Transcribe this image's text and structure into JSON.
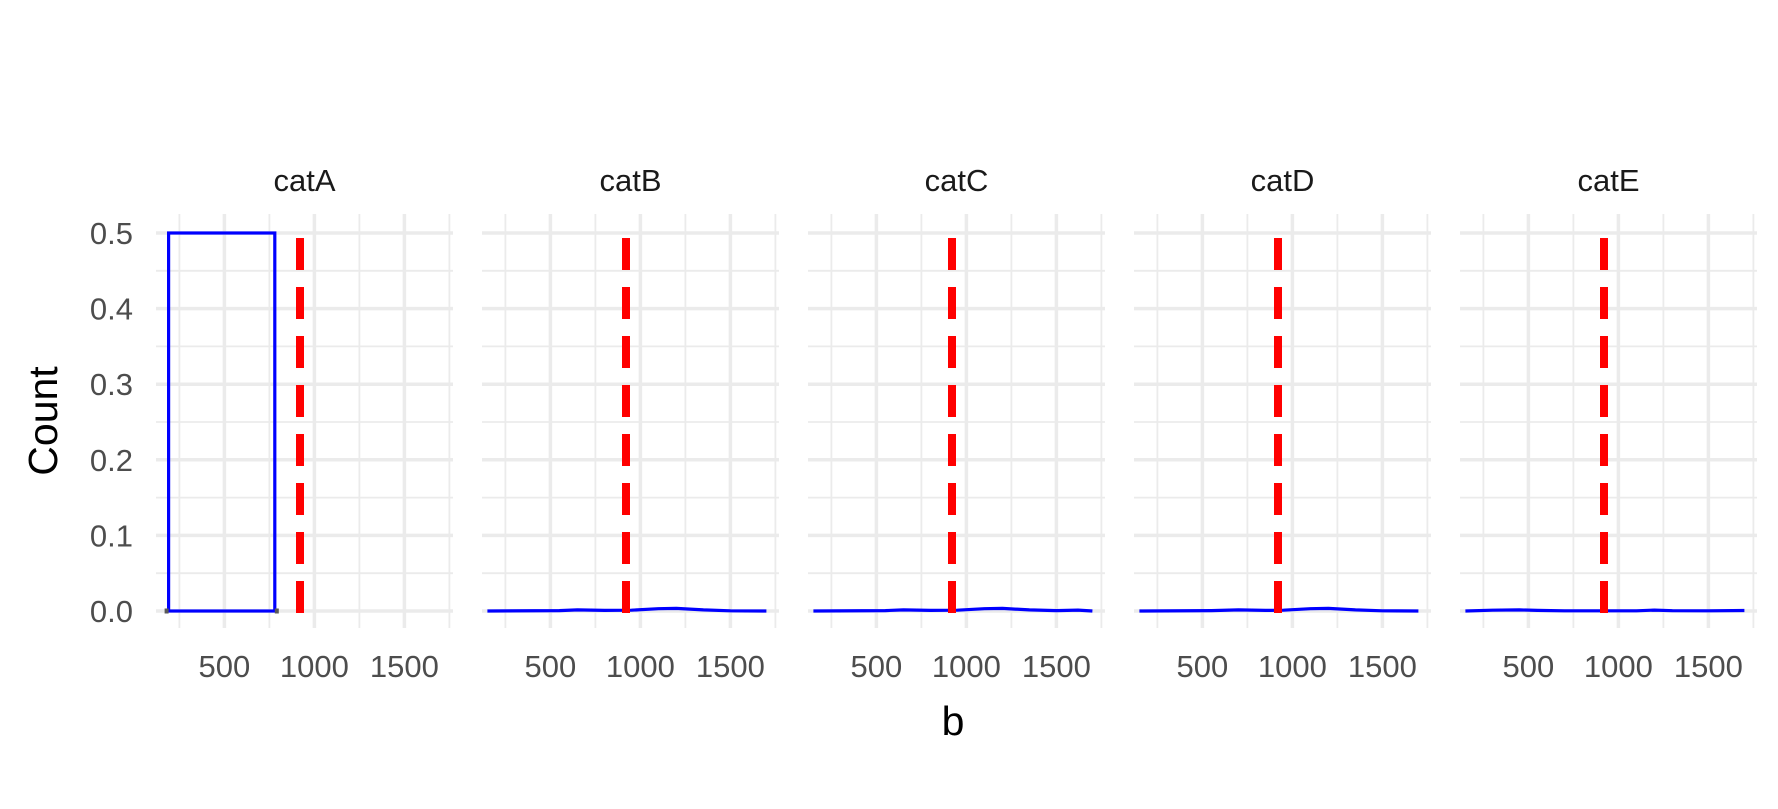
{
  "chart_data": {
    "type": "histogram-facets",
    "xlabel": "b",
    "ylabel": "Count",
    "x_ticks": [
      500,
      1000,
      1500
    ],
    "y_ticks": [
      "0.0",
      "0.1",
      "0.2",
      "0.3",
      "0.4",
      "0.5"
    ],
    "xlim": [
      120,
      1770
    ],
    "ylim": [
      -0.02,
      0.5
    ],
    "grid": true,
    "reference_line": {
      "x": 920,
      "style": "dashed",
      "color": "#ff0000"
    },
    "colors": {
      "series": "#0000ff",
      "reference": "#ff0000",
      "grid": "#ebebeb"
    },
    "facets": [
      {
        "label": "catA",
        "bins": [
          {
            "x0": 190,
            "x1": 780,
            "count": 0.5
          }
        ],
        "curve": []
      },
      {
        "label": "catB",
        "bins": [],
        "curve": [
          [
            150,
            0
          ],
          [
            550,
            0.0005
          ],
          [
            650,
            0.0015
          ],
          [
            800,
            0.0008
          ],
          [
            950,
            0.001
          ],
          [
            1100,
            0.003
          ],
          [
            1200,
            0.0035
          ],
          [
            1350,
            0.0015
          ],
          [
            1500,
            0.0003
          ],
          [
            1700,
            0
          ]
        ]
      },
      {
        "label": "catC",
        "bins": [],
        "curve": [
          [
            150,
            0
          ],
          [
            550,
            0.0005
          ],
          [
            650,
            0.0015
          ],
          [
            800,
            0.0008
          ],
          [
            950,
            0.001
          ],
          [
            1100,
            0.003
          ],
          [
            1200,
            0.0035
          ],
          [
            1350,
            0.0015
          ],
          [
            1500,
            0.0005
          ],
          [
            1620,
            0.0012
          ],
          [
            1700,
            0
          ]
        ]
      },
      {
        "label": "catD",
        "bins": [],
        "curve": [
          [
            150,
            0
          ],
          [
            550,
            0.0005
          ],
          [
            700,
            0.0015
          ],
          [
            850,
            0.0008
          ],
          [
            950,
            0.001
          ],
          [
            1100,
            0.003
          ],
          [
            1200,
            0.0035
          ],
          [
            1350,
            0.0015
          ],
          [
            1500,
            0.0003
          ],
          [
            1700,
            0
          ]
        ]
      },
      {
        "label": "catE",
        "bins": [],
        "curve": [
          [
            150,
            0
          ],
          [
            300,
            0.001
          ],
          [
            450,
            0.0015
          ],
          [
            550,
            0.0008
          ],
          [
            700,
            0.0003
          ],
          [
            900,
            0.0002
          ],
          [
            1100,
            0.0003
          ],
          [
            1200,
            0.0012
          ],
          [
            1300,
            0.0004
          ],
          [
            1500,
            0.0002
          ],
          [
            1700,
            0.0006
          ]
        ]
      }
    ]
  }
}
